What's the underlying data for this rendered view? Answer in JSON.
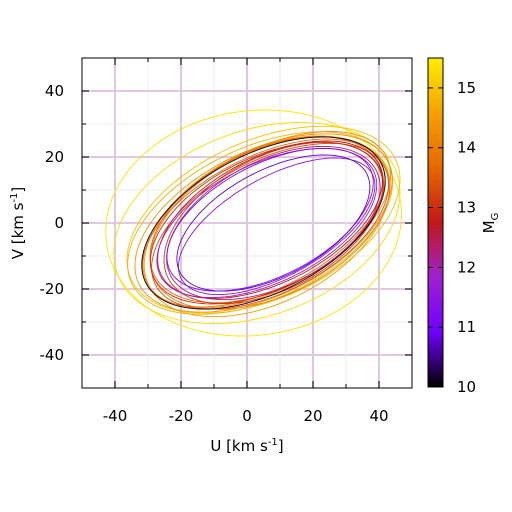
{
  "chart_data": {
    "type": "line",
    "xlabel": {
      "base": "U [km s",
      "sup": "-1",
      "close": "]"
    },
    "ylabel": {
      "base": "V [km s",
      "sup": "-1",
      "close": "]"
    },
    "xlim": [
      -50,
      50
    ],
    "ylim": [
      -50,
      50
    ],
    "xticks": [
      -40,
      -20,
      0,
      20,
      40
    ],
    "yticks": [
      -40,
      -20,
      0,
      20,
      40
    ],
    "xtick_labels": [
      "-40",
      "-20",
      "0",
      "20",
      "40"
    ],
    "ytick_labels": [
      "-40",
      "-20",
      "0",
      "20",
      "40"
    ],
    "grid": true,
    "colorbar": {
      "label": {
        "base": "M",
        "sub": "G"
      },
      "range": [
        10,
        15.5
      ],
      "ticks": [
        10,
        11,
        12,
        13,
        14,
        15
      ],
      "tick_labels": [
        "10",
        "11",
        "12",
        "13",
        "14",
        "15"
      ],
      "colors": [
        "#000000",
        "#7000ff",
        "#a020d0",
        "#c01818",
        "#e86800",
        "#f5a000",
        "#ffee00"
      ]
    },
    "orbits": [
      {
        "uc": 5,
        "vc": 0,
        "a": 40,
        "b": 21,
        "angle": 27,
        "mg": 10.1
      },
      {
        "uc": 8,
        "vc": 0,
        "a": 32,
        "b": 16,
        "angle": 28,
        "mg": 10.8
      },
      {
        "uc": 7,
        "vc": 1,
        "a": 34,
        "b": 17,
        "angle": 27,
        "mg": 11.2
      },
      {
        "uc": 9,
        "vc": -1,
        "a": 33,
        "b": 15,
        "angle": 29,
        "mg": 11.5
      },
      {
        "uc": 6,
        "vc": 0,
        "a": 36,
        "b": 18,
        "angle": 26,
        "mg": 11.9
      },
      {
        "uc": 8,
        "vc": 0,
        "a": 35,
        "b": 19,
        "angle": 27,
        "mg": 12.3
      },
      {
        "uc": 7,
        "vc": 1,
        "a": 37,
        "b": 19,
        "angle": 27,
        "mg": 12.7
      },
      {
        "uc": 6,
        "vc": 0,
        "a": 38,
        "b": 20,
        "angle": 26,
        "mg": 13.0
      },
      {
        "uc": 8,
        "vc": 0,
        "a": 36,
        "b": 20,
        "angle": 28,
        "mg": 13.2
      },
      {
        "uc": 7,
        "vc": -1,
        "a": 39,
        "b": 20,
        "angle": 27,
        "mg": 13.4
      },
      {
        "uc": 6,
        "vc": 1,
        "a": 38,
        "b": 21,
        "angle": 26,
        "mg": 13.6
      },
      {
        "uc": 5,
        "vc": 0,
        "a": 40,
        "b": 20,
        "angle": 27,
        "mg": 13.8
      },
      {
        "uc": 7,
        "vc": 0,
        "a": 39,
        "b": 22,
        "angle": 26,
        "mg": 14.0
      },
      {
        "uc": 6,
        "vc": 1,
        "a": 41,
        "b": 21,
        "angle": 28,
        "mg": 14.2
      },
      {
        "uc": 5,
        "vc": 0,
        "a": 42,
        "b": 22,
        "angle": 26,
        "mg": 14.4
      },
      {
        "uc": 6,
        "vc": -1,
        "a": 40,
        "b": 23,
        "angle": 27,
        "mg": 14.6
      },
      {
        "uc": 4,
        "vc": 0,
        "a": 43,
        "b": 23,
        "angle": 25,
        "mg": 14.8
      },
      {
        "uc": 5,
        "vc": 1,
        "a": 44,
        "b": 24,
        "angle": 24,
        "mg": 15.0
      },
      {
        "uc": 3,
        "vc": 0,
        "a": 45,
        "b": 28,
        "angle": 20,
        "mg": 15.3
      },
      {
        "uc": 2,
        "vc": 0,
        "a": 45,
        "b": 34,
        "angle": 8,
        "mg": 15.4
      }
    ]
  }
}
